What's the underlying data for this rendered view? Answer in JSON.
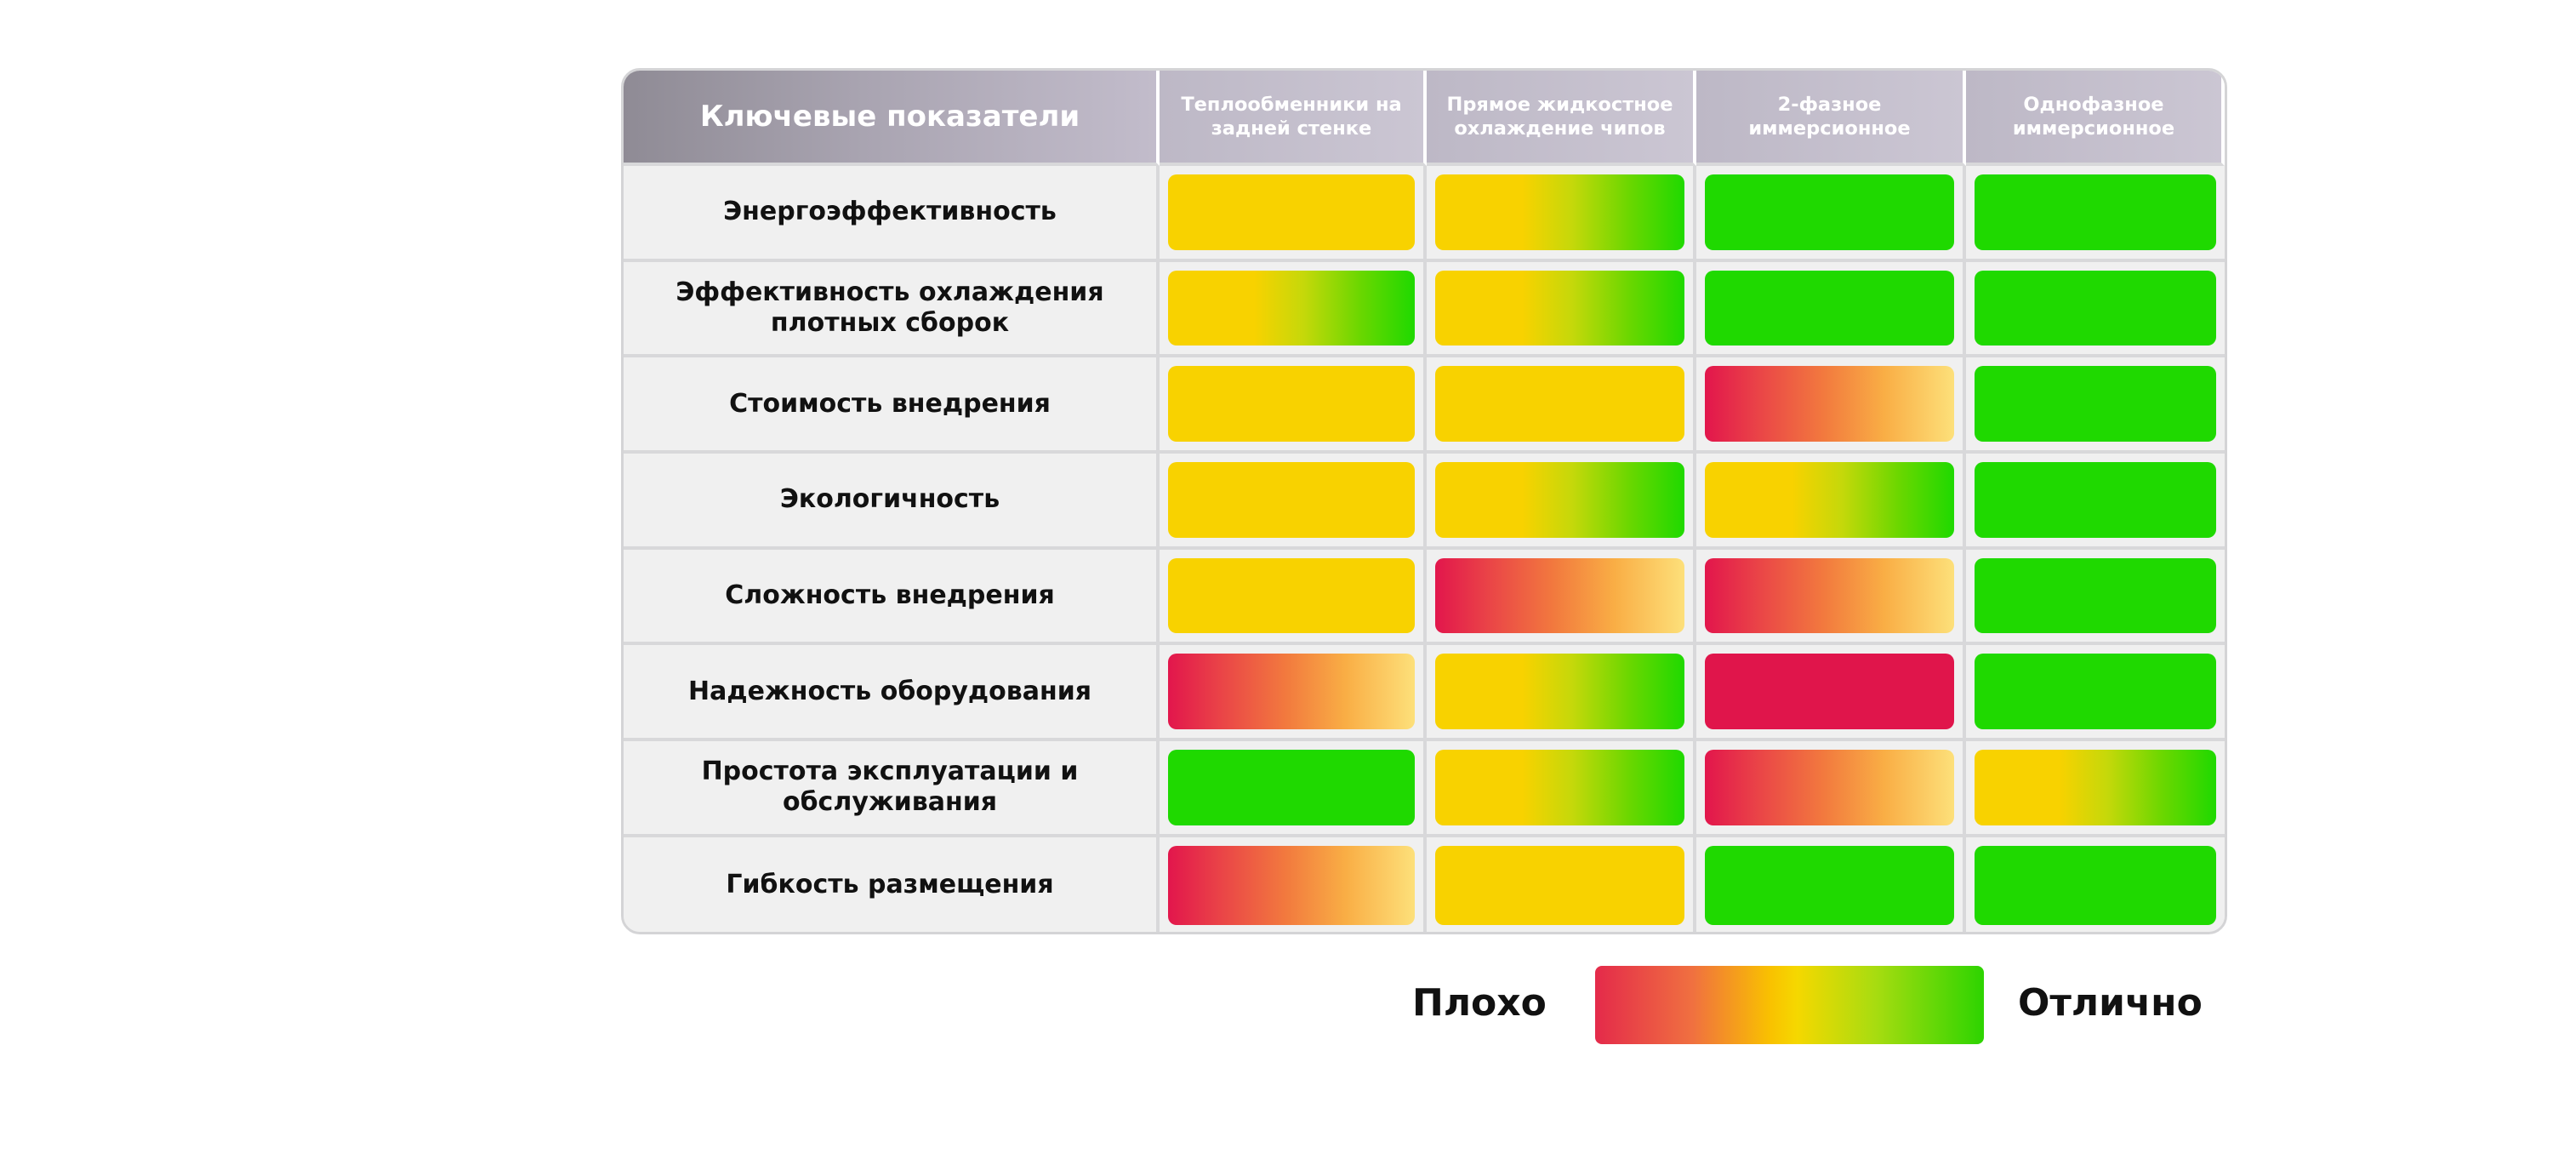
{
  "chart_data": {
    "type": "table",
    "header": "Ключевые показатели",
    "columns": [
      "Теплообменники на задней стенке",
      "Прямое жидкостное охлаждение чипов",
      "2-фазное иммерсионное",
      "Однофазное иммерсионное"
    ],
    "rows": [
      {
        "label": "Энергоэффективность",
        "ratings": [
          "yellow",
          "yellow-green",
          "green",
          "green"
        ]
      },
      {
        "label": "Эффективность охлаждения плотных сборок",
        "ratings": [
          "yellow-green",
          "yellow-green",
          "green",
          "green"
        ]
      },
      {
        "label": "Стоимость внедрения",
        "ratings": [
          "yellow",
          "yellow",
          "red-yellow",
          "green"
        ]
      },
      {
        "label": "Экологичность",
        "ratings": [
          "yellow",
          "yellow-green",
          "yellow-green",
          "green"
        ]
      },
      {
        "label": "Сложность внедрения",
        "ratings": [
          "yellow",
          "red-yellow",
          "red-yellow",
          "green"
        ]
      },
      {
        "label": "Надежность оборудования",
        "ratings": [
          "red-yellow",
          "yellow-green",
          "red",
          "green"
        ]
      },
      {
        "label": "Простота эксплуатации и обслуживания",
        "ratings": [
          "green",
          "yellow-green",
          "red-yellow",
          "yellow-green"
        ]
      },
      {
        "label": "Гибкость размещения",
        "ratings": [
          "red-yellow",
          "yellow",
          "green",
          "green"
        ]
      }
    ],
    "legend": {
      "low": "Плохо",
      "high": "Отлично"
    },
    "colors": {
      "red": "#e0154b",
      "yellow": "#f8d200",
      "green": "#1fd900"
    }
  }
}
